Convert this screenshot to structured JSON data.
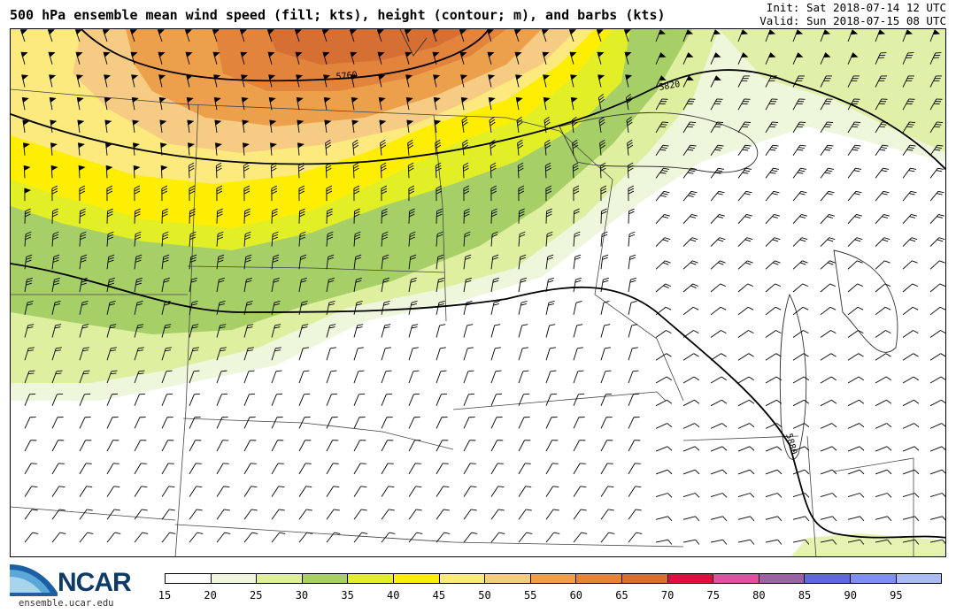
{
  "title": "500 hPa ensemble mean wind speed (fill; kts), height (contour; m), and barbs (kts)",
  "run": {
    "init": "Init: Sat 2018-07-14 12 UTC",
    "valid": "Valid: Sun 2018-07-15 08 UTC"
  },
  "branding": {
    "logo_text": "NCAR",
    "url": "ensemble.ucar.edu"
  },
  "colorbar": {
    "ticks": [
      "15",
      "20",
      "25",
      "30",
      "35",
      "40",
      "45",
      "50",
      "55",
      "60",
      "65",
      "70",
      "75",
      "80",
      "85",
      "90",
      "95"
    ],
    "colors": [
      "#ffffff",
      "#eef6dc",
      "#deef9f",
      "#a6cf67",
      "#e2ef27",
      "#fdee03",
      "#fdea7f",
      "#f6cc84",
      "#eda04c",
      "#e2843c",
      "#d56f34",
      "#e50c42",
      "#df50a0",
      "#9b63a5",
      "#5f67e3",
      "#7f8fec",
      "#a9bcf4"
    ]
  },
  "contours": {
    "height_labels": [
      "5760",
      "5820",
      "5880"
    ]
  },
  "colors": {
    "contour": "#000000",
    "state_border": "#444444",
    "barb": "#000000"
  }
}
